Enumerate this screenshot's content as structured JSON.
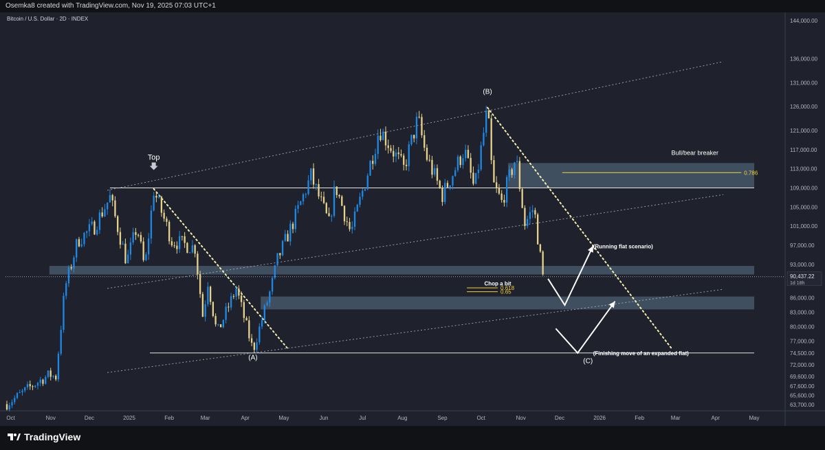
{
  "header": {
    "attribution": "Osemka8 created with TradingView.com, Nov 19, 2025 07:03 UTC+1"
  },
  "footer": {
    "brand": "TradingView",
    "logo_icon": "tradingview-logo-icon"
  },
  "colors": {
    "background": "#1f222c",
    "bull": "#1e88e5",
    "bear": "#e6d28c",
    "zone": "#4f6375",
    "fib": "#f2d23a",
    "annotation": "#ffffff"
  },
  "chart_data": {
    "type": "candlestick",
    "symbol_label": "Bitcoin / U.S. Dollar · 2D · INDEX",
    "ylim": [
      62400,
      145700
    ],
    "y_ticks": [
      "144,000.00",
      "136,000.00",
      "131,000.00",
      "126,000.00",
      "121,000.00",
      "117,000.00",
      "113,000.00",
      "109,000.00",
      "105,000.00",
      "101,000.00",
      "97,000.00",
      "93,000.00",
      "86,000.00",
      "83,000.00",
      "80,000.00",
      "77,000.00",
      "74,500.00",
      "72,000.00",
      "69,600.00",
      "67,600.00",
      "65,600.00",
      "63,700.00"
    ],
    "x_ticks": [
      "Oct",
      "Nov",
      "Dec",
      "2025",
      "Feb",
      "Mar",
      "Apr",
      "May",
      "Jun",
      "Jul",
      "Aug",
      "Sep",
      "Oct",
      "Nov",
      "Dec",
      "2026",
      "Feb",
      "Mar",
      "Apr",
      "May"
    ],
    "x_start": "2024-09-28",
    "x_end": "2026-05-01",
    "last_price": {
      "value": "90,437.22",
      "countdown": "1d 18h"
    },
    "anchors": [
      [
        "2024-09-28",
        63800
      ],
      [
        "2024-10-14",
        67000
      ],
      [
        "2024-10-31",
        70000
      ],
      [
        "2024-11-05",
        69500
      ],
      [
        "2024-11-12",
        88000
      ],
      [
        "2024-11-22",
        98000
      ],
      [
        "2024-12-05",
        101000
      ],
      [
        "2024-12-17",
        107000
      ],
      [
        "2024-12-30",
        93500
      ],
      [
        "2025-01-07",
        101000
      ],
      [
        "2025-01-13",
        92000
      ],
      [
        "2025-01-20",
        108500
      ],
      [
        "2025-02-03",
        98000
      ],
      [
        "2025-02-21",
        96500
      ],
      [
        "2025-02-28",
        80000
      ],
      [
        "2025-03-02",
        91000
      ],
      [
        "2025-03-10",
        78500
      ],
      [
        "2025-03-25",
        88000
      ],
      [
        "2025-04-07",
        75000
      ],
      [
        "2025-04-21",
        88000
      ],
      [
        "2025-04-26",
        94000
      ],
      [
        "2025-05-10",
        103000
      ],
      [
        "2025-05-22",
        111500
      ],
      [
        "2025-06-05",
        101500
      ],
      [
        "2025-06-10",
        109500
      ],
      [
        "2025-06-22",
        99500
      ],
      [
        "2025-07-11",
        118000
      ],
      [
        "2025-07-14",
        121500
      ],
      [
        "2025-08-02",
        113000
      ],
      [
        "2025-08-13",
        123500
      ],
      [
        "2025-08-19",
        116000
      ],
      [
        "2025-09-01",
        107500
      ],
      [
        "2025-09-18",
        117000
      ],
      [
        "2025-09-26",
        108500
      ],
      [
        "2025-10-06",
        125500
      ],
      [
        "2025-10-10",
        110000
      ],
      [
        "2025-10-17",
        106000
      ],
      [
        "2025-10-28",
        115500
      ],
      [
        "2025-11-04",
        101500
      ],
      [
        "2025-11-11",
        105000
      ],
      [
        "2025-11-18",
        90400
      ]
    ],
    "levels": [
      {
        "name": "range-high",
        "y": 109000,
        "from": "2024-12-17",
        "to": "2026-05-01"
      },
      {
        "name": "range-low",
        "y": 74500,
        "from": "2025-01-17",
        "to": "2026-05-01"
      }
    ],
    "zones": [
      {
        "name": "bull-bear-breaker-zone",
        "y1": 109000,
        "y2": 114200,
        "from": "2025-10-22",
        "to": "2026-05-01"
      },
      {
        "name": "upper-support-zone",
        "y1": 90900,
        "y2": 92700,
        "from": "2024-10-31",
        "to": "2026-05-01"
      },
      {
        "name": "lower-support-zone",
        "y1": 83600,
        "y2": 86300,
        "from": "2025-04-13",
        "to": "2026-05-01"
      }
    ],
    "fib_levels": [
      {
        "label": "0.786",
        "y": 112200,
        "from": "2025-12-03",
        "to": "2026-04-21"
      },
      {
        "label": "0.618",
        "y": 88100,
        "from": "2025-09-20",
        "to": "2025-10-14"
      },
      {
        "label": "0.65",
        "y": 87300,
        "from": "2025-09-20",
        "to": "2025-10-14"
      }
    ],
    "channel_lines": [
      {
        "name": "channel-upper",
        "from": [
          "2024-12-15",
          108500
        ],
        "to": [
          "2026-04-07",
          135400
        ]
      },
      {
        "name": "channel-mid",
        "from": [
          "2024-12-15",
          88000
        ],
        "to": [
          "2026-04-07",
          107600
        ]
      },
      {
        "name": "channel-lower",
        "from": [
          "2024-12-15",
          70400
        ],
        "to": [
          "2026-04-07",
          87800
        ]
      }
    ],
    "trend_lines": [
      {
        "name": "decline-a",
        "from": [
          "2025-01-20",
          108800
        ],
        "to": [
          "2025-05-04",
          75400
        ]
      },
      {
        "name": "decline-c",
        "from": [
          "2025-10-06",
          125800
        ],
        "to": [
          "2026-02-26",
          75400
        ]
      }
    ],
    "labels": [
      {
        "text": "Top",
        "x": "2025-01-20",
        "y": 114900
      },
      {
        "text": "(A)",
        "x": "2025-04-07",
        "y": 73100
      },
      {
        "text": "(B)",
        "x": "2025-10-06",
        "y": 128700
      },
      {
        "text": "(C)",
        "x": "2025-12-23",
        "y": 72400
      },
      {
        "text": "Bull/bear breaker",
        "x": "2026-03-16",
        "y": 115900
      },
      {
        "text": "Chop a bit",
        "x": "2025-10-14",
        "y": 88600
      },
      {
        "text": "(Running flat scenario)",
        "x": "2025-12-27",
        "y": 96400
      },
      {
        "text": "(Finishing move of an expanded flat)",
        "x": "2025-12-27",
        "y": 74000
      }
    ],
    "scenario_paths": [
      {
        "name": "running-flat-path",
        "points": [
          [
            "2025-11-22",
            90000
          ],
          [
            "2025-12-05",
            84500
          ],
          [
            "2025-12-27",
            96900
          ]
        ]
      },
      {
        "name": "expanded-flat-path",
        "points": [
          [
            "2025-11-28",
            79600
          ],
          [
            "2025-12-15",
            74500
          ],
          [
            "2026-01-13",
            85300
          ]
        ]
      }
    ]
  }
}
